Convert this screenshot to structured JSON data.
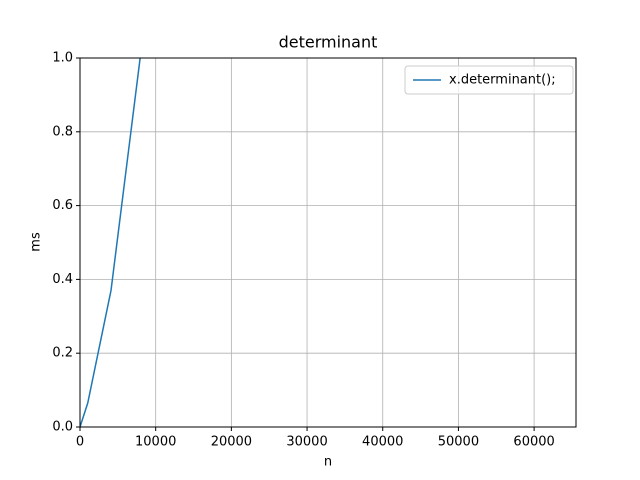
{
  "chart_data": {
    "type": "line",
    "title": "determinant",
    "x_label": "n",
    "y_label": "ms",
    "x": [
      0,
      1024,
      4096,
      8192
    ],
    "series": [
      {
        "name": "x.determinant();",
        "color": "#1f77b4",
        "values": [
          0,
          0.065,
          0.37,
          1.04
        ]
      }
    ],
    "xlim": [
      0,
      65536
    ],
    "ylim": [
      0,
      1.0
    ],
    "xticks": [
      0,
      10000,
      20000,
      30000,
      40000,
      50000,
      60000
    ],
    "yticks": [
      {
        "value": 0,
        "label": "0.0"
      },
      {
        "value": 0.2,
        "label": "0.2"
      },
      {
        "value": 0.4,
        "label": "0.4"
      },
      {
        "value": 0.6,
        "label": "0.6"
      },
      {
        "value": 0.8,
        "label": "0.8"
      },
      {
        "value": 1.0,
        "label": "1.0"
      }
    ],
    "grid": true,
    "legend": "upper right"
  }
}
